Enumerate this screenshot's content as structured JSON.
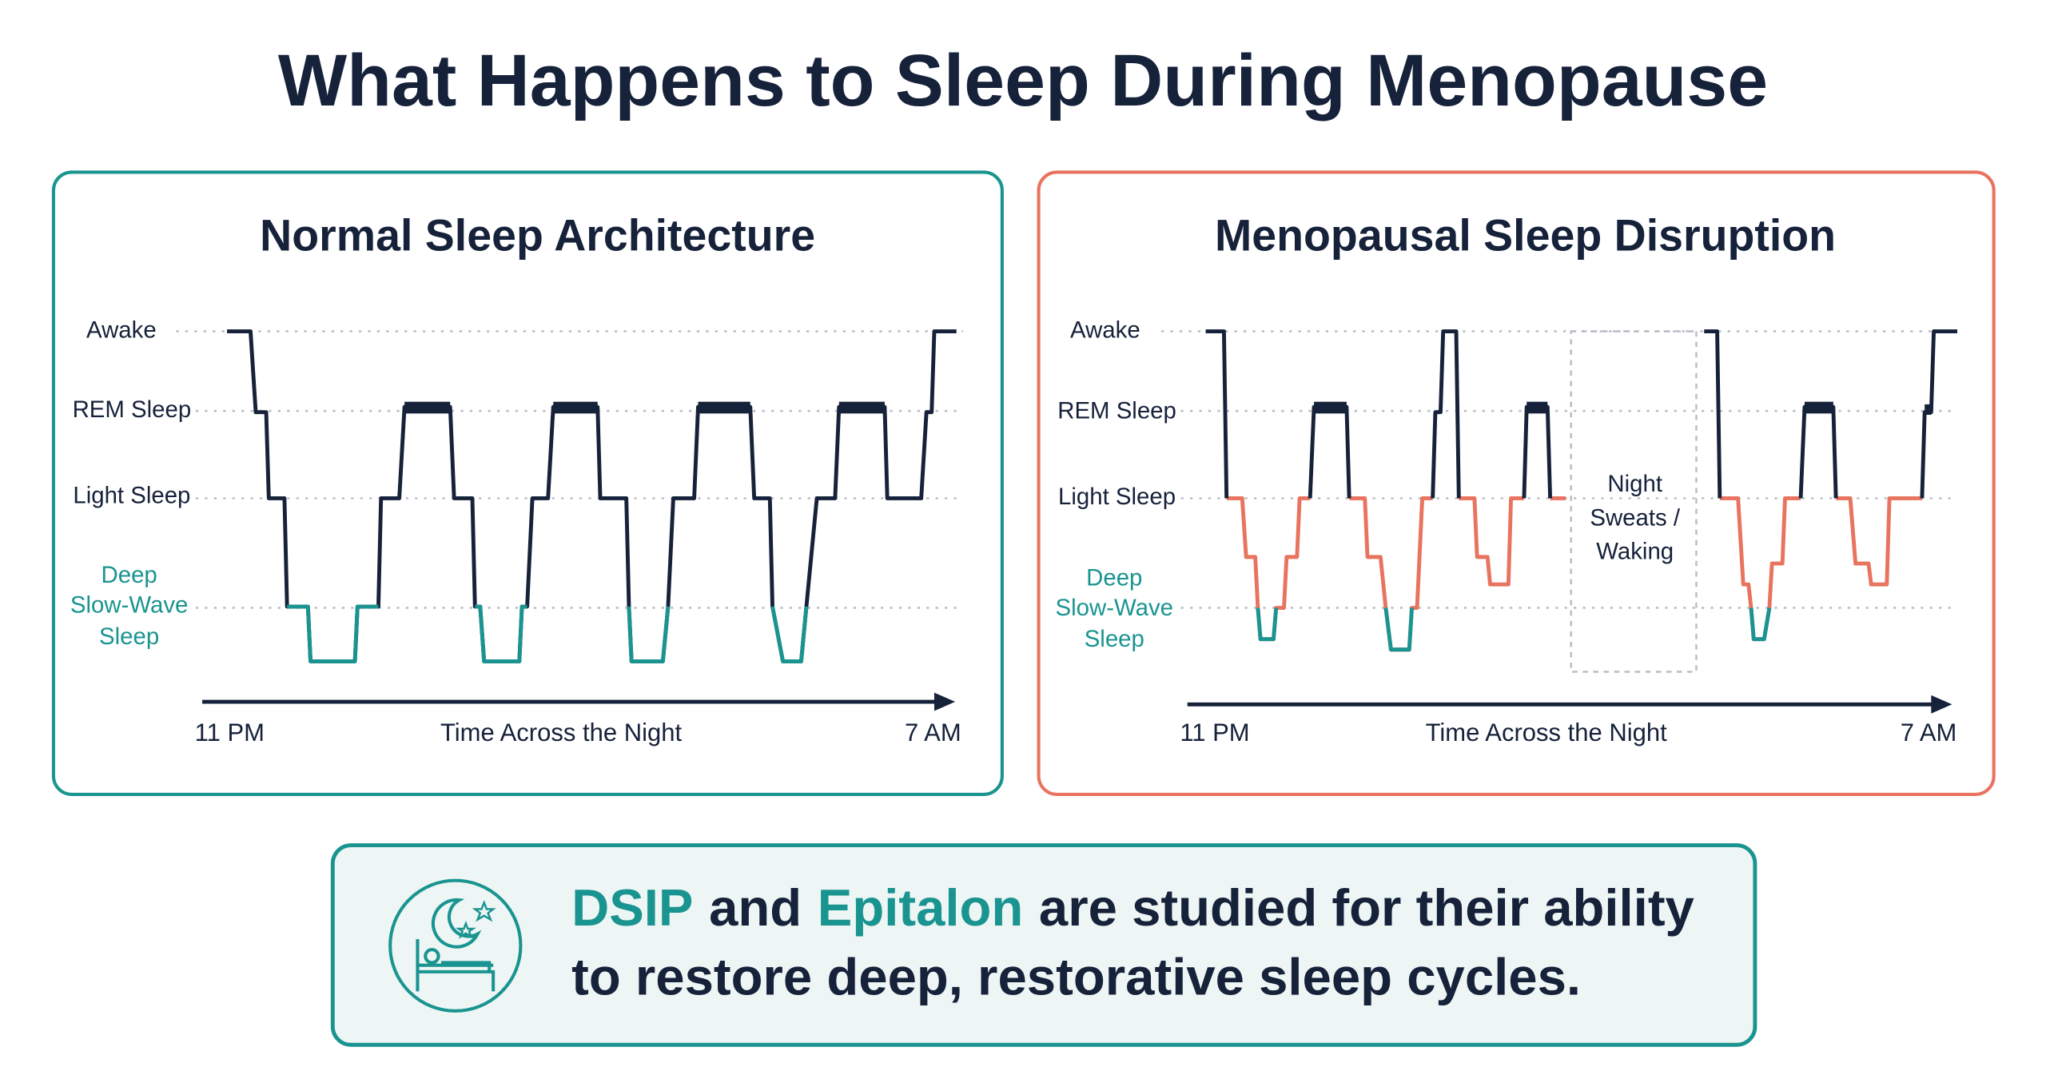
{
  "title": "What Happens to Sleep During Menopause",
  "panels": [
    {
      "title": "Normal Sleep Architecture",
      "stages": [
        "Awake",
        "REM Sleep",
        "Light Sleep"
      ],
      "deep_label": [
        "Deep",
        "Slow-Wave",
        "Sleep"
      ],
      "x_start": "11 PM",
      "x_label": "Time Across the Night",
      "x_end": "7 AM"
    },
    {
      "title": "Menopausal Sleep Disruption",
      "stages": [
        "Awake",
        "REM Sleep",
        "Light Sleep"
      ],
      "deep_label": [
        "Deep",
        "Slow-Wave",
        "Sleep"
      ],
      "x_start": "11 PM",
      "x_label": "Time Across the Night",
      "x_end": "7 AM",
      "annotation": [
        "Night",
        "Sweats /",
        "Waking"
      ]
    }
  ],
  "callout": {
    "line1": [
      "DSIP",
      "and",
      "Epitalon",
      "are studied for their ability"
    ],
    "line2": "to restore deep, restorative sleep cycles."
  }
}
